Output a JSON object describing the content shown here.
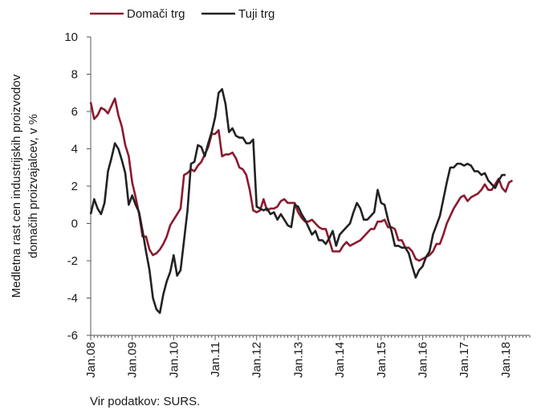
{
  "chart_data": {
    "type": "line",
    "title": "",
    "ylabel_lines": [
      "Medletna rast cen industrijskih proizvodov",
      "domačih proizvajalcev, v %"
    ],
    "xlabel": "",
    "ylim": [
      -6,
      10
    ],
    "yticks": [
      -6,
      -4,
      -2,
      0,
      2,
      4,
      6,
      8,
      10
    ],
    "x_start": "2008-01",
    "x_tick_labels": [
      "Jan.08",
      "Jan.09",
      "Jan.10",
      "Jan.11",
      "Jan.12",
      "Jan.13",
      "Jan.14",
      "Jan.15",
      "Jan.16",
      "Jan.17",
      "Jan.18"
    ],
    "grid": false,
    "legend_position": "top-left",
    "series": [
      {
        "name": "Domači trg",
        "color": "#8b1a2e",
        "values": [
          6.5,
          5.6,
          5.8,
          6.2,
          6.1,
          5.9,
          6.3,
          6.7,
          5.8,
          5.2,
          4.2,
          3.6,
          2.2,
          1.4,
          0.5,
          -0.7,
          -0.7,
          -1.4,
          -1.7,
          -1.6,
          -1.4,
          -1.1,
          -0.7,
          -0.1,
          0.2,
          0.5,
          0.8,
          2.6,
          2.7,
          2.9,
          2.8,
          3.1,
          3.3,
          3.7,
          4.1,
          4.8,
          4.8,
          5.0,
          3.6,
          3.7,
          3.7,
          3.8,
          3.5,
          3.0,
          2.9,
          2.6,
          1.8,
          0.7,
          0.6,
          0.7,
          1.3,
          0.7,
          0.8,
          0.8,
          0.9,
          1.2,
          1.3,
          1.1,
          1.1,
          1.1,
          0.6,
          0.3,
          0.1,
          0.1,
          0.2,
          0.0,
          -0.2,
          -0.3,
          -0.3,
          -0.9,
          -1.5,
          -1.5,
          -1.5,
          -1.2,
          -1.0,
          -1.2,
          -1.1,
          -1.0,
          -0.9,
          -0.7,
          -0.5,
          -0.3,
          -0.3,
          0.1,
          0.1,
          0.2,
          -0.2,
          -0.2,
          -0.3,
          -0.9,
          -0.9,
          -1.3,
          -1.3,
          -1.5,
          -1.9,
          -2.0,
          -1.9,
          -1.8,
          -1.7,
          -1.5,
          -1.1,
          -1.1,
          -0.6,
          0.0,
          0.4,
          0.8,
          1.1,
          1.4,
          1.5,
          1.2,
          1.4,
          1.5,
          1.6,
          1.8,
          2.1,
          1.8,
          1.8,
          2.1,
          2.4,
          1.9,
          1.7,
          2.2,
          2.3
        ]
      },
      {
        "name": "Tuji trg",
        "color": "#222222",
        "values": [
          0.5,
          1.3,
          0.8,
          0.5,
          1.1,
          2.8,
          3.5,
          4.3,
          4.0,
          3.4,
          2.7,
          1.0,
          1.5,
          1.0,
          0.6,
          -0.4,
          -1.5,
          -2.5,
          -4.0,
          -4.6,
          -4.8,
          -3.8,
          -3.1,
          -2.6,
          -1.7,
          -2.8,
          -2.5,
          -0.9,
          0.7,
          3.2,
          3.3,
          4.2,
          4.1,
          3.6,
          4.3,
          4.9,
          5.7,
          7.0,
          7.2,
          6.4,
          4.9,
          5.1,
          4.7,
          4.6,
          4.6,
          4.3,
          4.3,
          4.5,
          0.9,
          0.8,
          0.7,
          0.8,
          0.5,
          0.6,
          0.2,
          0.5,
          0.2,
          -0.1,
          -0.2,
          1.0,
          0.9,
          0.5,
          0.2,
          -0.2,
          -0.6,
          -0.4,
          -0.9,
          -0.9,
          -1.1,
          -0.8,
          -0.4,
          -1.2,
          -0.6,
          -0.4,
          -0.2,
          0.0,
          0.6,
          1.1,
          0.8,
          0.2,
          0.2,
          0.4,
          0.6,
          1.8,
          1.1,
          1.0,
          0.2,
          -0.4,
          -1.2,
          -1.2,
          -1.3,
          -1.3,
          -1.6,
          -2.3,
          -2.9,
          -2.5,
          -2.3,
          -1.8,
          -1.5,
          -0.6,
          -0.1,
          0.4,
          1.3,
          2.2,
          3.0,
          3.0,
          3.2,
          3.2,
          3.1,
          3.2,
          3.1,
          2.8,
          2.8,
          2.6,
          2.7,
          2.3,
          2.1,
          1.9,
          2.3,
          2.6,
          2.6
        ]
      }
    ],
    "source_text": "Vir podatkov: SURS."
  }
}
